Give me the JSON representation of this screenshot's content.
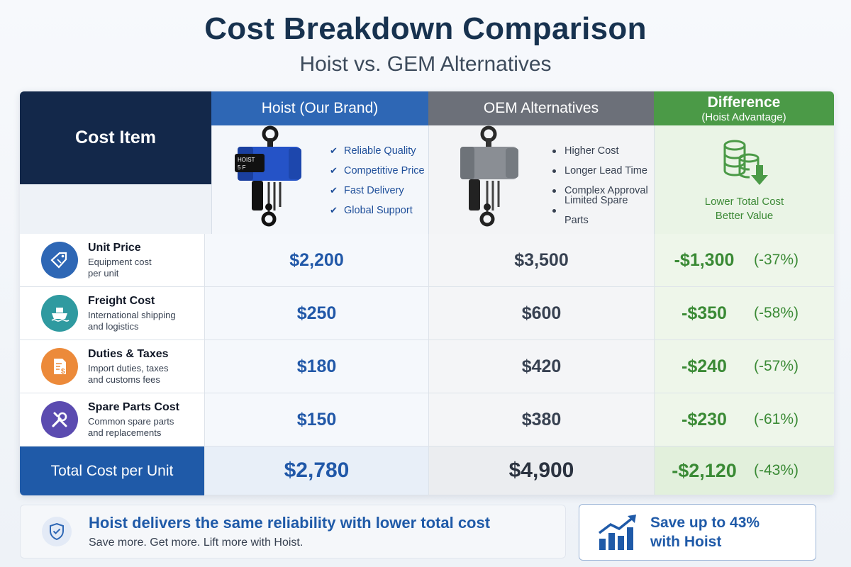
{
  "title": "Cost Breakdown Comparison",
  "subtitle": "Hoist vs. GEM Alternatives",
  "header": {
    "cost_item": "Cost Item",
    "hoist": "Hoist (Our Brand)",
    "oem": "OEM Alternatives",
    "diff": "Difference",
    "diff_sub": "(Hoist Advantage)"
  },
  "hoist_features": [
    "Reliable Quality",
    "Competitive Price",
    "Fast Delivery",
    "Global Support"
  ],
  "hoist_product_label": "HOIST",
  "oem_features": [
    "Higher Cost",
    "Longer Lead Time",
    "Complex Approval",
    "Limited Spare Parts"
  ],
  "diff_summary": [
    "Lower Total Cost",
    "Better Value"
  ],
  "rows": [
    {
      "title": "Unit Price",
      "desc1": "Equipment cost",
      "desc2": "per unit",
      "hoist": "$2,200",
      "oem": "$3,500",
      "diff": "-$1,300",
      "pct": "(-37%)",
      "icon": "price-tag-icon",
      "color": "#2e67b5"
    },
    {
      "title": "Freight Cost",
      "desc1": "International shipping",
      "desc2": "and logistics",
      "hoist": "$250",
      "oem": "$600",
      "diff": "-$350",
      "pct": "(-58%)",
      "icon": "ship-icon",
      "color": "#2f9aa0"
    },
    {
      "title": "Duties & Taxes",
      "desc1": "Import duties, taxes",
      "desc2": "and customs fees",
      "hoist": "$180",
      "oem": "$420",
      "diff": "-$240",
      "pct": "(-57%)",
      "icon": "tax-document-icon",
      "color": "#ec8a3a"
    },
    {
      "title": "Spare Parts Cost",
      "desc1": "Common spare parts",
      "desc2": "and replacements",
      "hoist": "$150",
      "oem": "$380",
      "diff": "-$230",
      "pct": "(-61%)",
      "icon": "wrench-icon",
      "color": "#5b4bb0"
    }
  ],
  "total": {
    "label": "Total Cost per Unit",
    "hoist": "$2,780",
    "oem": "$4,900",
    "diff": "-$2,120",
    "pct": "(-43%)"
  },
  "footer": {
    "title": "Hoist delivers the same reliability with lower total cost",
    "sub": "Save more. Get more. Lift more with Hoist.",
    "save_line1": "Save up to 43%",
    "save_line2": "with Hoist"
  },
  "colors": {
    "navy": "#13284a",
    "blue": "#2e67b5",
    "gray": "#6c7079",
    "green": "#4b9a47"
  }
}
